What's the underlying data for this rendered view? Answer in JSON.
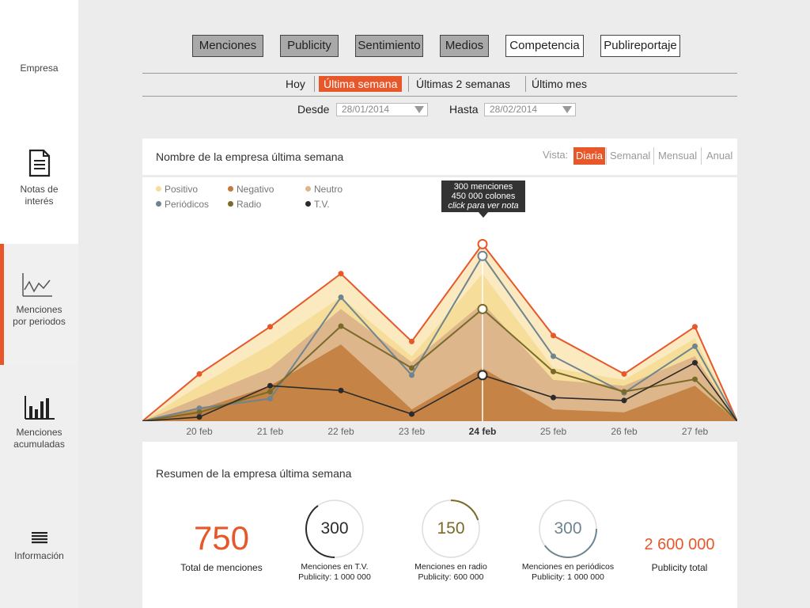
{
  "sidebar": {
    "items": [
      {
        "label": "Empresa",
        "icon": "none"
      },
      {
        "label_line1": "Notas de",
        "label_line2": "interés",
        "icon": "document-icon"
      },
      {
        "label_line1": "Menciones",
        "label_line2": "por periodos",
        "icon": "line-chart-icon"
      },
      {
        "label_line1": "Menciones",
        "label_line2": "acumuladas",
        "icon": "bar-chart-icon"
      },
      {
        "label": "Información",
        "icon": "list-icon"
      }
    ]
  },
  "top_nav": {
    "buttons": [
      "Menciones",
      "Publicity",
      "Sentimiento",
      "Medios",
      "Competencia",
      "Publireportaje"
    ]
  },
  "ranges": [
    "Hoy",
    "Última semana",
    "Últimas 2 semanas",
    "Último mes"
  ],
  "dates": {
    "from_label": "Desde",
    "from_value": "28/01/2014",
    "to_label": "Hasta",
    "to_value": "28/02/2014"
  },
  "chart_card": {
    "title": "Nombre de la empresa última semana",
    "vista_label": "Vista:",
    "vista_options": [
      "Diaria",
      "Semanal",
      "Mensual",
      "Anual"
    ]
  },
  "tooltip": {
    "line1": "300 menciones",
    "line2": "450 000 colones",
    "line3": "click para ver nota"
  },
  "colors": {
    "accent": "#e8572a",
    "positivo": "#f6dd9a",
    "negativo": "#c17a3a",
    "neutro": "#ddb68b",
    "periodicos": "#6e8490",
    "radio": "#7a6a2a",
    "tv": "#2b2b2b"
  },
  "chart_data": {
    "type": "line",
    "categories": [
      "20 feb",
      "21 feb",
      "22 feb",
      "23 feb",
      "24 feb",
      "25 feb",
      "26 feb",
      "27 feb"
    ],
    "highlight": "24 feb",
    "legend": [
      "Positivo",
      "Negativo",
      "Neutro",
      "Periódicos",
      "Radio",
      "T.V."
    ],
    "ylim": [
      0,
      330
    ],
    "series": [
      {
        "name": "Total",
        "values": [
          80,
          160,
          250,
          135,
          300,
          145,
          80,
          160
        ]
      },
      {
        "name": "Positivo",
        "values": [
          60,
          130,
          210,
          110,
          250,
          90,
          70,
          140
        ]
      },
      {
        "name": "Neutro",
        "values": [
          40,
          90,
          190,
          100,
          200,
          70,
          60,
          110
        ]
      },
      {
        "name": "Negativo",
        "values": [
          20,
          60,
          130,
          20,
          90,
          20,
          15,
          60
        ]
      },
      {
        "name": "Periódicos",
        "values": [
          22,
          38,
          210,
          78,
          280,
          110,
          48,
          127
        ]
      },
      {
        "name": "Radio",
        "values": [
          15,
          50,
          161,
          90,
          190,
          84,
          50,
          71
        ]
      },
      {
        "name": "T.V.",
        "values": [
          7,
          60,
          52,
          12,
          78,
          40,
          35,
          99
        ]
      }
    ]
  },
  "summary": {
    "title": "Resumen de la empresa última semana",
    "total_value": "750",
    "total_label": "Total de menciones",
    "tv": {
      "value": "300",
      "label": "Menciones en T.V.",
      "publicity": "Publicity: 1 000 000",
      "fraction": 0.4
    },
    "radio": {
      "value": "150",
      "label": "Menciones en radio",
      "publicity": "Publicity: 600 000",
      "fraction": 0.2
    },
    "periodicos": {
      "value": "300",
      "label": "Menciones en periódicos",
      "publicity": "Publicity: 1 000 000",
      "fraction": 0.4
    },
    "publicity_value": "2 600 000",
    "publicity_label": "Publicity total"
  }
}
